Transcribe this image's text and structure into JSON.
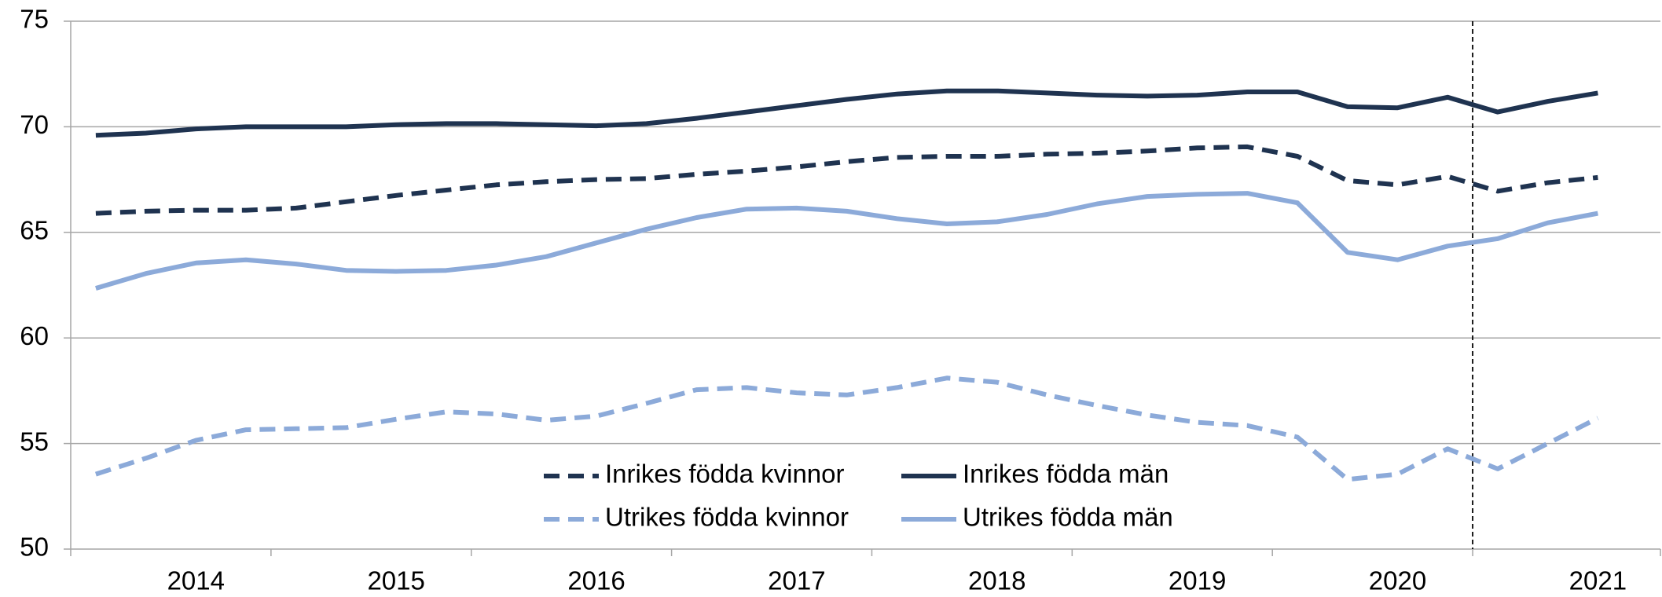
{
  "chart_data": {
    "type": "line",
    "categories": [
      null,
      null,
      "2014",
      null,
      null,
      null,
      "2015",
      null,
      null,
      null,
      "2016",
      null,
      null,
      null,
      "2017",
      null,
      null,
      null,
      "2018",
      null,
      null,
      null,
      "2019",
      null,
      null,
      null,
      "2020",
      null,
      null,
      null,
      "2021"
    ],
    "series": [
      {
        "name": "Inrikes födda kvinnor",
        "color": "#1f3350",
        "dashed": true,
        "values": [
          65.9,
          66.0,
          66.05,
          66.05,
          66.15,
          66.45,
          66.75,
          67.0,
          67.25,
          67.4,
          67.5,
          67.55,
          67.75,
          67.9,
          68.1,
          68.35,
          68.55,
          68.6,
          68.6,
          68.7,
          68.75,
          68.85,
          69.0,
          69.05,
          68.6,
          67.45,
          67.25,
          67.65,
          66.95,
          67.35,
          67.6
        ]
      },
      {
        "name": "Inrikes födda män",
        "color": "#1f3350",
        "dashed": false,
        "values": [
          69.6,
          69.7,
          69.9,
          70.0,
          70.0,
          70.0,
          70.1,
          70.15,
          70.15,
          70.1,
          70.05,
          70.15,
          70.4,
          70.7,
          71.0,
          71.3,
          71.55,
          71.7,
          71.7,
          71.6,
          71.5,
          71.45,
          71.5,
          71.65,
          71.65,
          70.95,
          70.9,
          71.4,
          70.7,
          71.2,
          71.6
        ]
      },
      {
        "name": "Utrikes födda kvinnor",
        "color": "#8caad9",
        "dashed": true,
        "values": [
          53.55,
          54.3,
          55.15,
          55.65,
          55.7,
          55.75,
          56.15,
          56.5,
          56.4,
          56.1,
          56.3,
          56.9,
          57.55,
          57.65,
          57.4,
          57.3,
          57.65,
          58.1,
          57.9,
          57.3,
          56.8,
          56.35,
          56.0,
          55.85,
          55.3,
          53.3,
          53.55,
          54.75,
          53.8,
          55.0,
          56.2
        ]
      },
      {
        "name": "Utrikes födda män",
        "color": "#8caad9",
        "dashed": false,
        "values": [
          62.35,
          63.05,
          63.55,
          63.7,
          63.5,
          63.2,
          63.15,
          63.2,
          63.45,
          63.85,
          64.5,
          65.15,
          65.7,
          66.1,
          66.15,
          66.0,
          65.65,
          65.4,
          65.5,
          65.85,
          66.35,
          66.7,
          66.8,
          66.85,
          66.4,
          64.05,
          63.7,
          64.35,
          64.7,
          65.45,
          65.9
        ]
      }
    ],
    "ylim": [
      50,
      75
    ],
    "yticks": [
      50,
      55,
      60,
      65,
      70,
      75
    ],
    "grid": true
  }
}
